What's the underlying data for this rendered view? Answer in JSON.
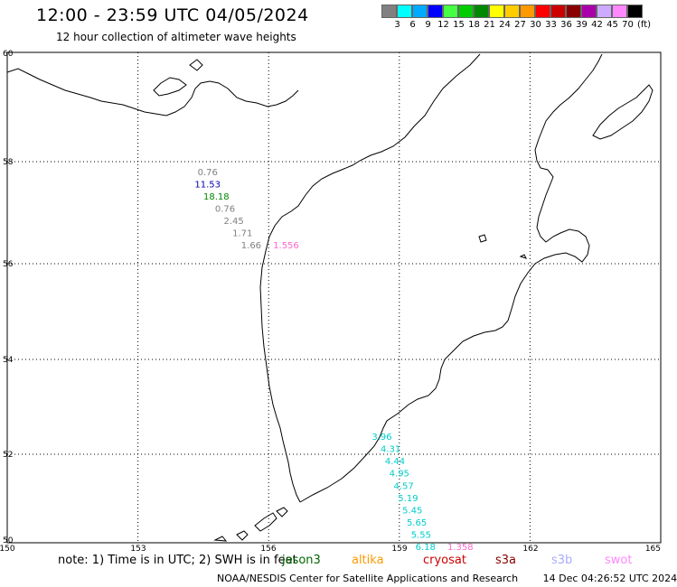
{
  "title": "12:00 - 23:59 UTC 04/05/2024",
  "subtitle": "12 hour collection of altimeter wave heights",
  "scale": {
    "colors": [
      "#808080",
      "#00ffff",
      "#00aaff",
      "#0000ff",
      "#44ff44",
      "#00cc00",
      "#008800",
      "#ffff00",
      "#ffcc00",
      "#ff9900",
      "#ff0000",
      "#cc0000",
      "#880000",
      "#aa00aa",
      "#ccaaff",
      "#ff88ff",
      "#000000"
    ],
    "labels": [
      "3",
      "6",
      "9",
      "12",
      "15",
      "18",
      "21",
      "24",
      "27",
      "30",
      "33",
      "36",
      "39",
      "42",
      "45",
      "70"
    ],
    "unit": "(ft)"
  },
  "axes": {
    "lon_labels": [
      "150",
      "153",
      "156",
      "159",
      "162",
      "165"
    ],
    "lat_labels": [
      "60",
      "58",
      "56",
      "54",
      "52",
      "50"
    ]
  },
  "observations": [
    {
      "text": "0.76",
      "color": "#808080",
      "lon": 154.6,
      "lat": 57.5
    },
    {
      "text": "11.53",
      "color": "#0000aa",
      "lon": 154.6,
      "lat": 57.25
    },
    {
      "text": "18.18",
      "color": "#008800",
      "lon": 154.8,
      "lat": 57.0
    },
    {
      "text": "0.76",
      "color": "#808080",
      "lon": 155.0,
      "lat": 56.75
    },
    {
      "text": "2.45",
      "color": "#808080",
      "lon": 155.2,
      "lat": 56.5
    },
    {
      "text": "1.71",
      "color": "#808080",
      "lon": 155.4,
      "lat": 56.25
    },
    {
      "text": "1.66",
      "color": "#808080",
      "lon": 155.6,
      "lat": 56.0
    },
    {
      "text": "1.556",
      "color": "#ff66cc",
      "lon": 156.4,
      "lat": 56.0
    },
    {
      "text": "3.96",
      "color": "#00cccc",
      "lon": 158.6,
      "lat": 52.1
    },
    {
      "text": "4.31",
      "color": "#00cccc",
      "lon": 158.8,
      "lat": 51.85
    },
    {
      "text": "4.44",
      "color": "#00cccc",
      "lon": 158.9,
      "lat": 51.6
    },
    {
      "text": "4.95",
      "color": "#00cccc",
      "lon": 159.0,
      "lat": 51.35
    },
    {
      "text": "4.57",
      "color": "#00cccc",
      "lon": 159.1,
      "lat": 51.1
    },
    {
      "text": "5.19",
      "color": "#00cccc",
      "lon": 159.2,
      "lat": 50.85
    },
    {
      "text": "5.45",
      "color": "#00cccc",
      "lon": 159.3,
      "lat": 50.6
    },
    {
      "text": "5.65",
      "color": "#00cccc",
      "lon": 159.4,
      "lat": 50.35
    },
    {
      "text": "5.55",
      "color": "#00cccc",
      "lon": 159.5,
      "lat": 50.1
    },
    {
      "text": "6.18",
      "color": "#00cccc",
      "lon": 159.6,
      "lat": 49.85
    },
    {
      "text": "1.358",
      "color": "#ff66cc",
      "lon": 160.4,
      "lat": 49.85
    }
  ],
  "note": "note: 1) Time is in UTC; 2) SWH is in feet",
  "missions": [
    {
      "name": "jason3",
      "color": "#006600"
    },
    {
      "name": "altika",
      "color": "#ff9900"
    },
    {
      "name": "cryosat",
      "color": "#cc0000"
    },
    {
      "name": "s3a",
      "color": "#880000"
    },
    {
      "name": "s3b",
      "color": "#aaaaff"
    },
    {
      "name": "swot",
      "color": "#ff88ff"
    }
  ],
  "footer": {
    "org": "NOAA/NESDIS Center for Satellite Applications and Research",
    "timestamp": "14 Dec 04:26:52 UTC 2024"
  }
}
